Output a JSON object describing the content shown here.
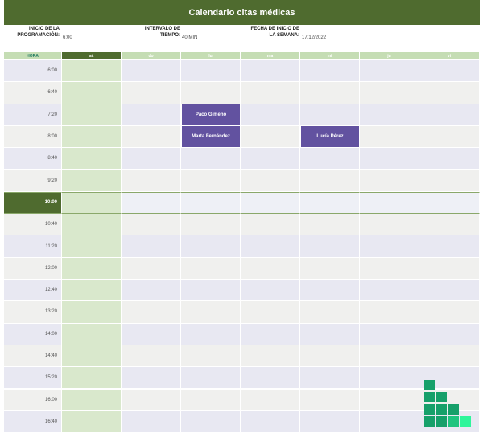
{
  "title": "Calendario citas médicas",
  "settings": {
    "start_label_1": "INICIO DE LA",
    "start_label_2": "PROGRAMACIÓN:",
    "start_value": "6:00",
    "interval_label_1": "INTERVALO DE",
    "interval_label_2": "TIEMPO:",
    "interval_value": "40 MIN",
    "week_label_1": "FECHA DE INICIO DE",
    "week_label_2": "LA SEMANA:",
    "week_value": "17/12/2022"
  },
  "columns": {
    "hora": "HORA",
    "days": [
      "sá",
      "do",
      "lu",
      "ma",
      "mi",
      "ju",
      "vi"
    ]
  },
  "times": [
    "6:00",
    "6:40",
    "7:20",
    "8:00",
    "8:40",
    "9:20",
    "10:00",
    "10:40",
    "11:20",
    "12:00",
    "12:40",
    "13:20",
    "14:00",
    "14:40",
    "15:20",
    "16:00",
    "16:40"
  ],
  "appointments": {
    "paco": "Paco Gimeno",
    "marta": "Marta Fernández",
    "lucia": "Lucía Pérez"
  },
  "colors": {
    "header": "#4f6b2f",
    "appointment": "#6252a0",
    "logo_dark": "#16a06a",
    "logo_light": "#2ff59b"
  },
  "logo_icon": "excel-staircase-logo"
}
